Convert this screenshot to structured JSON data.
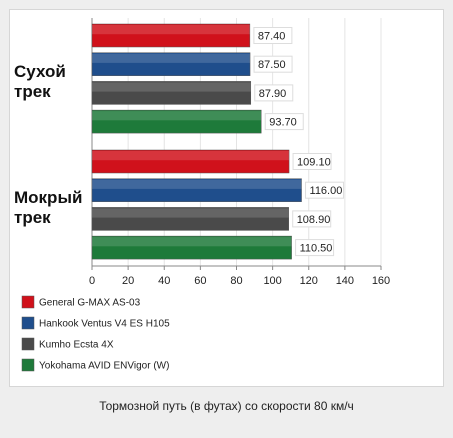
{
  "chart_data": {
    "type": "bar",
    "orientation": "horizontal",
    "categories": [
      "Сухой трек",
      "Мокрый трек"
    ],
    "series": [
      {
        "name": "General G-MAX AS-03",
        "color": "#d0111b",
        "values": [
          87.4,
          109.1
        ],
        "value_labels": [
          "87.40",
          "109.10"
        ]
      },
      {
        "name": "Hankook Ventus V4 ES H105",
        "color": "#1f4e8c",
        "values": [
          87.5,
          116.0
        ],
        "value_labels": [
          "87.50",
          "116.00"
        ]
      },
      {
        "name": "Kumho Ecsta 4X",
        "color": "#4a4a4a",
        "values": [
          87.9,
          108.9
        ],
        "value_labels": [
          "87.90",
          "108.90"
        ]
      },
      {
        "name": "Yokohama AVID ENVigor (W)",
        "color": "#1e7a3a",
        "values": [
          93.7,
          110.5
        ],
        "value_labels": [
          "93.70",
          "110.50"
        ]
      }
    ],
    "xlim": [
      0,
      160
    ],
    "xticks": [
      0,
      20,
      40,
      60,
      80,
      100,
      120,
      140,
      160
    ],
    "grid": true,
    "caption": "Тормозной путь (в футах) со скорости 80 км/ч"
  }
}
